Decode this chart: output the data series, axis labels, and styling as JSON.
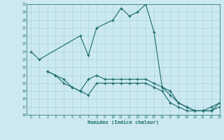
{
  "background_color": "#cce9f0",
  "grid_color": "#aad4de",
  "line_color": "#1a6b6b",
  "marker": "+",
  "xlabel": "Humidex (Indice chaleur)",
  "ylim": [
    16,
    30
  ],
  "xlim": [
    -0.5,
    23
  ],
  "yticks": [
    16,
    17,
    18,
    19,
    20,
    21,
    22,
    23,
    24,
    25,
    26,
    27,
    28,
    29,
    30
  ],
  "xticks": [
    0,
    1,
    2,
    3,
    4,
    5,
    6,
    7,
    8,
    9,
    10,
    11,
    12,
    13,
    14,
    15,
    16,
    17,
    18,
    19,
    20,
    21,
    22,
    23
  ],
  "series": [
    {
      "x": [
        0,
        1,
        6,
        7,
        8,
        10,
        11,
        12,
        13,
        14,
        15,
        16,
        17,
        18,
        19,
        20,
        21,
        22,
        23
      ],
      "y": [
        24,
        23,
        26,
        23.5,
        27,
        28,
        29.5,
        28.5,
        29,
        30,
        26.5,
        19.5,
        19,
        17.5,
        17,
        16.5,
        16.5,
        17,
        17.5
      ]
    },
    {
      "x": [
        2,
        3,
        4,
        5,
        6,
        7,
        8,
        9,
        10,
        11,
        12,
        13,
        14,
        15,
        16,
        17,
        18,
        19,
        20,
        21,
        22,
        23
      ],
      "y": [
        21.5,
        21,
        20,
        19.5,
        19,
        18.5,
        20,
        20,
        20,
        20,
        20,
        20,
        20,
        19.5,
        19,
        17.5,
        17,
        16.5,
        16.5,
        16.5,
        16.5,
        17
      ]
    },
    {
      "x": [
        2,
        3,
        4,
        5,
        6,
        7,
        8,
        9,
        10,
        11,
        12,
        13,
        14,
        15,
        16,
        17,
        18,
        19,
        20,
        21,
        22,
        23
      ],
      "y": [
        21.5,
        21,
        20.5,
        19.5,
        19,
        20.5,
        21,
        20.5,
        20.5,
        20.5,
        20.5,
        20.5,
        20.5,
        20,
        19.5,
        18.5,
        17.5,
        17,
        16.5,
        16.5,
        16.5,
        17.5
      ]
    }
  ]
}
